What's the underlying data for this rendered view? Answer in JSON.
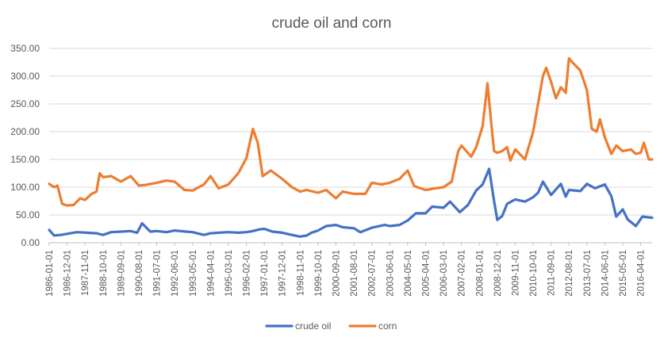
{
  "chart_data": {
    "type": "line",
    "title": "crude oil and corn",
    "xlabel": "",
    "ylabel": "",
    "ylim": [
      0,
      350
    ],
    "y_ticks": [
      "0.00",
      "50.00",
      "100.00",
      "150.00",
      "200.00",
      "250.00",
      "300.00",
      "350.00"
    ],
    "x_range": [
      "1986-01-01",
      "2016-11-01"
    ],
    "x_tick_labels": [
      "1986-01-01",
      "1986-12-01",
      "1987-11-01",
      "1988-10-01",
      "1989-09-01",
      "1990-08-01",
      "1991-07-01",
      "1992-06-01",
      "1993-05-01",
      "1994-04-01",
      "1995-03-01",
      "1996-02-01",
      "1997-01-01",
      "1997-12-01",
      "1998-11-01",
      "1999-10-01",
      "2000-09-01",
      "2001-08-01",
      "2002-07-01",
      "2003-06-01",
      "2004-05-01",
      "2005-04-01",
      "2006-03-01",
      "2007-02-01",
      "2008-01-01",
      "2008-12-01",
      "2009-11-01",
      "2010-10-01",
      "2011-09-01",
      "2012-08-01",
      "2013-07-01",
      "2014-06-01",
      "2015-05-01",
      "2016-04-01"
    ],
    "grid": "horizontal",
    "legend_position": "bottom",
    "series": [
      {
        "name": "crude oil",
        "color": "#4472C4",
        "points": [
          [
            "1986-01-01",
            23
          ],
          [
            "1986-04-01",
            13
          ],
          [
            "1986-08-01",
            14
          ],
          [
            "1986-12-01",
            16
          ],
          [
            "1987-06-01",
            19
          ],
          [
            "1987-12-01",
            18
          ],
          [
            "1988-06-01",
            17
          ],
          [
            "1988-10-01",
            14
          ],
          [
            "1989-03-01",
            19
          ],
          [
            "1989-09-01",
            20
          ],
          [
            "1990-03-01",
            21
          ],
          [
            "1990-07-01",
            18
          ],
          [
            "1990-10-01",
            35
          ],
          [
            "1991-03-01",
            20
          ],
          [
            "1991-07-01",
            21
          ],
          [
            "1992-01-01",
            19
          ],
          [
            "1992-06-01",
            22
          ],
          [
            "1993-01-01",
            20
          ],
          [
            "1993-05-01",
            19
          ],
          [
            "1993-12-01",
            14
          ],
          [
            "1994-04-01",
            17
          ],
          [
            "1994-09-01",
            18
          ],
          [
            "1995-03-01",
            19
          ],
          [
            "1995-09-01",
            18
          ],
          [
            "1996-02-01",
            19
          ],
          [
            "1996-06-01",
            21
          ],
          [
            "1996-10-01",
            24
          ],
          [
            "1997-01-01",
            25
          ],
          [
            "1997-06-01",
            20
          ],
          [
            "1997-12-01",
            18
          ],
          [
            "1998-06-01",
            14
          ],
          [
            "1998-11-01",
            11
          ],
          [
            "1999-03-01",
            13
          ],
          [
            "1999-06-01",
            18
          ],
          [
            "1999-10-01",
            22
          ],
          [
            "2000-03-01",
            30
          ],
          [
            "2000-09-01",
            32
          ],
          [
            "2001-01-01",
            28
          ],
          [
            "2001-08-01",
            26
          ],
          [
            "2001-12-01",
            19
          ],
          [
            "2002-07-01",
            27
          ],
          [
            "2003-03-01",
            32
          ],
          [
            "2003-06-01",
            30
          ],
          [
            "2003-12-01",
            32
          ],
          [
            "2004-05-01",
            40
          ],
          [
            "2004-10-01",
            53
          ],
          [
            "2005-04-01",
            53
          ],
          [
            "2005-08-01",
            65
          ],
          [
            "2006-03-01",
            63
          ],
          [
            "2006-07-01",
            74
          ],
          [
            "2007-01-01",
            55
          ],
          [
            "2007-06-01",
            68
          ],
          [
            "2007-11-01",
            94
          ],
          [
            "2008-03-01",
            105
          ],
          [
            "2008-07-01",
            133
          ],
          [
            "2008-10-01",
            75
          ],
          [
            "2008-12-01",
            41
          ],
          [
            "2009-03-01",
            48
          ],
          [
            "2009-06-01",
            70
          ],
          [
            "2009-11-01",
            78
          ],
          [
            "2010-05-01",
            74
          ],
          [
            "2010-10-01",
            82
          ],
          [
            "2011-01-01",
            90
          ],
          [
            "2011-04-01",
            110
          ],
          [
            "2011-09-01",
            86
          ],
          [
            "2012-03-01",
            106
          ],
          [
            "2012-06-01",
            83
          ],
          [
            "2012-08-01",
            95
          ],
          [
            "2013-03-01",
            93
          ],
          [
            "2013-07-01",
            106
          ],
          [
            "2013-12-01",
            98
          ],
          [
            "2014-06-01",
            105
          ],
          [
            "2014-10-01",
            84
          ],
          [
            "2015-01-01",
            47
          ],
          [
            "2015-05-01",
            60
          ],
          [
            "2015-08-01",
            42
          ],
          [
            "2016-01-01",
            30
          ],
          [
            "2016-05-01",
            47
          ],
          [
            "2016-11-01",
            45
          ]
        ]
      },
      {
        "name": "corn",
        "color": "#ED7D31",
        "points": [
          [
            "1986-01-01",
            106
          ],
          [
            "1986-04-01",
            100
          ],
          [
            "1986-06-01",
            103
          ],
          [
            "1986-09-01",
            70
          ],
          [
            "1986-12-01",
            67
          ],
          [
            "1987-04-01",
            68
          ],
          [
            "1987-08-01",
            80
          ],
          [
            "1987-11-01",
            77
          ],
          [
            "1988-03-01",
            88
          ],
          [
            "1988-06-01",
            92
          ],
          [
            "1988-08-01",
            125
          ],
          [
            "1988-10-01",
            118
          ],
          [
            "1989-03-01",
            120
          ],
          [
            "1989-09-01",
            110
          ],
          [
            "1990-03-01",
            120
          ],
          [
            "1990-08-01",
            103
          ],
          [
            "1990-12-01",
            104
          ],
          [
            "1991-07-01",
            108
          ],
          [
            "1992-01-01",
            112
          ],
          [
            "1992-06-01",
            110
          ],
          [
            "1992-12-01",
            95
          ],
          [
            "1993-05-01",
            94
          ],
          [
            "1993-12-01",
            105
          ],
          [
            "1994-04-01",
            120
          ],
          [
            "1994-09-01",
            98
          ],
          [
            "1995-03-01",
            105
          ],
          [
            "1995-09-01",
            125
          ],
          [
            "1996-02-01",
            152
          ],
          [
            "1996-06-01",
            205
          ],
          [
            "1996-09-01",
            180
          ],
          [
            "1996-12-01",
            120
          ],
          [
            "1997-05-01",
            130
          ],
          [
            "1997-12-01",
            115
          ],
          [
            "1998-06-01",
            100
          ],
          [
            "1998-11-01",
            92
          ],
          [
            "1999-03-01",
            95
          ],
          [
            "1999-10-01",
            90
          ],
          [
            "2000-03-01",
            95
          ],
          [
            "2000-09-01",
            80
          ],
          [
            "2001-01-01",
            92
          ],
          [
            "2001-08-01",
            88
          ],
          [
            "2002-03-01",
            88
          ],
          [
            "2002-07-01",
            108
          ],
          [
            "2003-01-01",
            105
          ],
          [
            "2003-06-01",
            108
          ],
          [
            "2003-12-01",
            115
          ],
          [
            "2004-05-01",
            130
          ],
          [
            "2004-09-01",
            102
          ],
          [
            "2005-04-01",
            95
          ],
          [
            "2005-10-01",
            98
          ],
          [
            "2006-03-01",
            100
          ],
          [
            "2006-08-01",
            110
          ],
          [
            "2006-12-01",
            165
          ],
          [
            "2007-02-01",
            175
          ],
          [
            "2007-08-01",
            155
          ],
          [
            "2007-11-01",
            172
          ],
          [
            "2008-03-01",
            210
          ],
          [
            "2008-06-01",
            287
          ],
          [
            "2008-08-01",
            225
          ],
          [
            "2008-10-01",
            165
          ],
          [
            "2008-12-01",
            162
          ],
          [
            "2009-03-01",
            165
          ],
          [
            "2009-06-01",
            172
          ],
          [
            "2009-08-01",
            148
          ],
          [
            "2009-11-01",
            168
          ],
          [
            "2010-05-01",
            150
          ],
          [
            "2010-10-01",
            200
          ],
          [
            "2011-01-01",
            250
          ],
          [
            "2011-04-01",
            300
          ],
          [
            "2011-06-01",
            315
          ],
          [
            "2011-09-01",
            290
          ],
          [
            "2011-12-01",
            260
          ],
          [
            "2012-03-01",
            280
          ],
          [
            "2012-06-01",
            270
          ],
          [
            "2012-08-01",
            332
          ],
          [
            "2012-10-01",
            325
          ],
          [
            "2013-03-01",
            310
          ],
          [
            "2013-07-01",
            275
          ],
          [
            "2013-10-01",
            205
          ],
          [
            "2014-01-01",
            200
          ],
          [
            "2014-03-01",
            222
          ],
          [
            "2014-06-01",
            190
          ],
          [
            "2014-10-01",
            160
          ],
          [
            "2015-01-01",
            175
          ],
          [
            "2015-05-01",
            165
          ],
          [
            "2015-10-01",
            168
          ],
          [
            "2016-01-01",
            160
          ],
          [
            "2016-04-01",
            162
          ],
          [
            "2016-06-01",
            180
          ],
          [
            "2016-09-01",
            150
          ],
          [
            "2016-11-01",
            150
          ]
        ]
      }
    ]
  }
}
